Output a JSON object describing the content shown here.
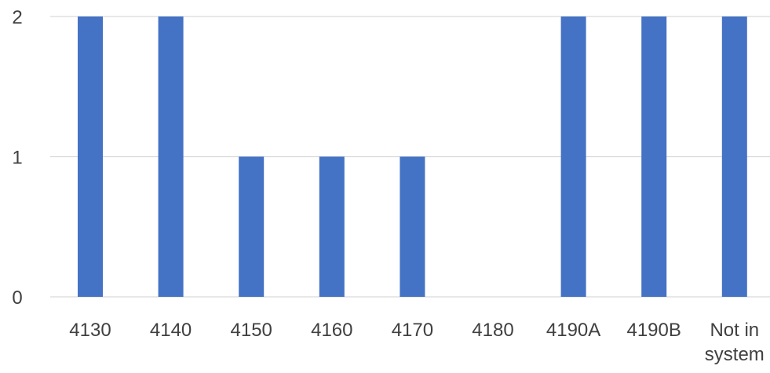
{
  "chart_data": {
    "type": "bar",
    "categories": [
      [
        "4130"
      ],
      [
        "4140"
      ],
      [
        "4150"
      ],
      [
        "4160"
      ],
      [
        "4170"
      ],
      [
        "4180"
      ],
      [
        "4190A"
      ],
      [
        "4190B"
      ],
      [
        "Not in",
        "system"
      ]
    ],
    "values": [
      2,
      2,
      1,
      1,
      1,
      0,
      2,
      2,
      2
    ],
    "ylim": [
      0,
      2
    ],
    "yticks": [
      0,
      1,
      2
    ],
    "grid": true,
    "colors": {
      "bar": "#4472C4",
      "grid": "#d9d9d9",
      "text": "#404040"
    }
  }
}
